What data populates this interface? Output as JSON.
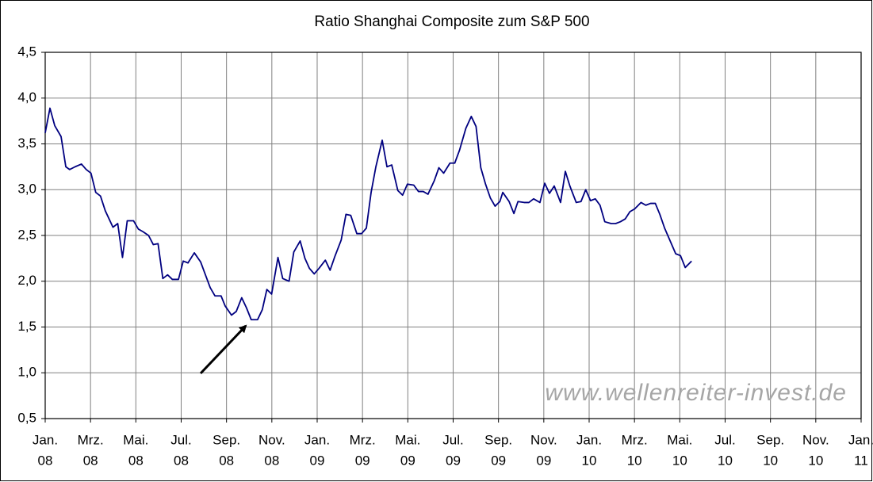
{
  "chart_data": {
    "type": "line",
    "title": "Ratio Shanghai Composite zum S&P 500",
    "watermark": "www.wellenreiter-invest.de",
    "color": "#000080",
    "grid": true,
    "xlim": [
      0,
      36
    ],
    "xticks": [
      {
        "value": 0,
        "label": [
          "Jan.",
          "08"
        ]
      },
      {
        "value": 2,
        "label": [
          "Mrz.",
          "08"
        ]
      },
      {
        "value": 4,
        "label": [
          "Mai.",
          "08"
        ]
      },
      {
        "value": 6,
        "label": [
          "Jul.",
          "08"
        ]
      },
      {
        "value": 8,
        "label": [
          "Sep.",
          "08"
        ]
      },
      {
        "value": 10,
        "label": [
          "Nov.",
          "08"
        ]
      },
      {
        "value": 12,
        "label": [
          "Jan.",
          "09"
        ]
      },
      {
        "value": 14,
        "label": [
          "Mrz.",
          "09"
        ]
      },
      {
        "value": 16,
        "label": [
          "Mai.",
          "09"
        ]
      },
      {
        "value": 18,
        "label": [
          "Jul.",
          "09"
        ]
      },
      {
        "value": 20,
        "label": [
          "Sep.",
          "09"
        ]
      },
      {
        "value": 22,
        "label": [
          "Nov.",
          "09"
        ]
      },
      {
        "value": 24,
        "label": [
          "Jan.",
          "10"
        ]
      },
      {
        "value": 26,
        "label": [
          "Mrz.",
          "10"
        ]
      },
      {
        "value": 28,
        "label": [
          "Mai.",
          "10"
        ]
      },
      {
        "value": 30,
        "label": [
          "Jul.",
          "10"
        ]
      },
      {
        "value": 32,
        "label": [
          "Sep.",
          "10"
        ]
      },
      {
        "value": 34,
        "label": [
          "Nov.",
          "10"
        ]
      },
      {
        "value": 36,
        "label": [
          "Jan.",
          "11"
        ]
      }
    ],
    "ylim": [
      0.5,
      4.5
    ],
    "yticks": [
      {
        "value": 0.5,
        "label": "0,5"
      },
      {
        "value": 1.0,
        "label": "1,0"
      },
      {
        "value": 1.5,
        "label": "1,5"
      },
      {
        "value": 2.0,
        "label": "2,0"
      },
      {
        "value": 2.5,
        "label": "2,5"
      },
      {
        "value": 3.0,
        "label": "3,0"
      },
      {
        "value": 3.5,
        "label": "3,5"
      },
      {
        "value": 4.0,
        "label": "4,0"
      },
      {
        "value": 4.5,
        "label": "4,5"
      }
    ],
    "x": [
      0,
      0.21,
      0.42,
      0.7,
      0.91,
      1.08,
      1.32,
      1.6,
      1.81,
      2.02,
      2.23,
      2.44,
      2.65,
      2.99,
      3.2,
      3.41,
      3.62,
      3.9,
      4.11,
      4.32,
      4.56,
      4.77,
      4.98,
      5.19,
      5.4,
      5.61,
      5.88,
      6.09,
      6.3,
      6.58,
      6.86,
      7.07,
      7.28,
      7.49,
      7.76,
      7.94,
      8.22,
      8.43,
      8.67,
      8.88,
      9.09,
      9.37,
      9.58,
      9.78,
      9.99,
      10.27,
      10.48,
      10.76,
      10.97,
      11.25,
      11.46,
      11.66,
      11.87,
      12.08,
      12.36,
      12.57,
      12.78,
      13.06,
      13.27,
      13.48,
      13.75,
      13.96,
      14.17,
      14.38,
      14.59,
      14.87,
      15.08,
      15.29,
      15.56,
      15.77,
      15.98,
      16.26,
      16.47,
      16.68,
      16.89,
      17.17,
      17.37,
      17.58,
      17.86,
      18.07,
      18.28,
      18.56,
      18.8,
      19.01,
      19.22,
      19.43,
      19.64,
      19.85,
      20.06,
      20.19,
      20.47,
      20.68,
      20.86,
      21.13,
      21.34,
      21.55,
      21.83,
      22.04,
      22.25,
      22.46,
      22.74,
      22.95,
      23.15,
      23.43,
      23.64,
      23.85,
      24.06,
      24.27,
      24.48,
      24.69,
      24.97,
      25.17,
      25.38,
      25.59,
      25.8,
      26.01,
      26.29,
      26.5,
      26.71,
      26.92,
      27.12,
      27.33,
      27.54,
      27.82,
      28.03,
      28.24,
      28.52
    ],
    "values": [
      3.62,
      3.89,
      3.7,
      3.58,
      3.25,
      3.22,
      3.25,
      3.28,
      3.22,
      3.18,
      2.97,
      2.93,
      2.77,
      2.59,
      2.63,
      2.26,
      2.66,
      2.66,
      2.57,
      2.54,
      2.5,
      2.4,
      2.41,
      2.03,
      2.07,
      2.02,
      2.02,
      2.22,
      2.2,
      2.31,
      2.21,
      2.07,
      1.93,
      1.84,
      1.84,
      1.73,
      1.63,
      1.67,
      1.82,
      1.71,
      1.58,
      1.58,
      1.69,
      1.91,
      1.86,
      2.26,
      2.03,
      2.0,
      2.32,
      2.44,
      2.25,
      2.14,
      2.08,
      2.14,
      2.23,
      2.12,
      2.27,
      2.45,
      2.73,
      2.72,
      2.52,
      2.52,
      2.58,
      2.97,
      3.25,
      3.54,
      3.25,
      3.27,
      2.99,
      2.94,
      3.06,
      3.05,
      2.98,
      2.98,
      2.95,
      3.1,
      3.24,
      3.18,
      3.29,
      3.29,
      3.43,
      3.67,
      3.8,
      3.69,
      3.24,
      3.06,
      2.91,
      2.82,
      2.87,
      2.97,
      2.87,
      2.74,
      2.87,
      2.86,
      2.86,
      2.9,
      2.86,
      3.07,
      2.96,
      3.04,
      2.86,
      3.2,
      3.04,
      2.86,
      2.87,
      3.0,
      2.88,
      2.9,
      2.83,
      2.65,
      2.63,
      2.63,
      2.65,
      2.68,
      2.76,
      2.79,
      2.86,
      2.83,
      2.85,
      2.85,
      2.73,
      2.58,
      2.46,
      2.3,
      2.28,
      2.15,
      2.22
    ]
  }
}
